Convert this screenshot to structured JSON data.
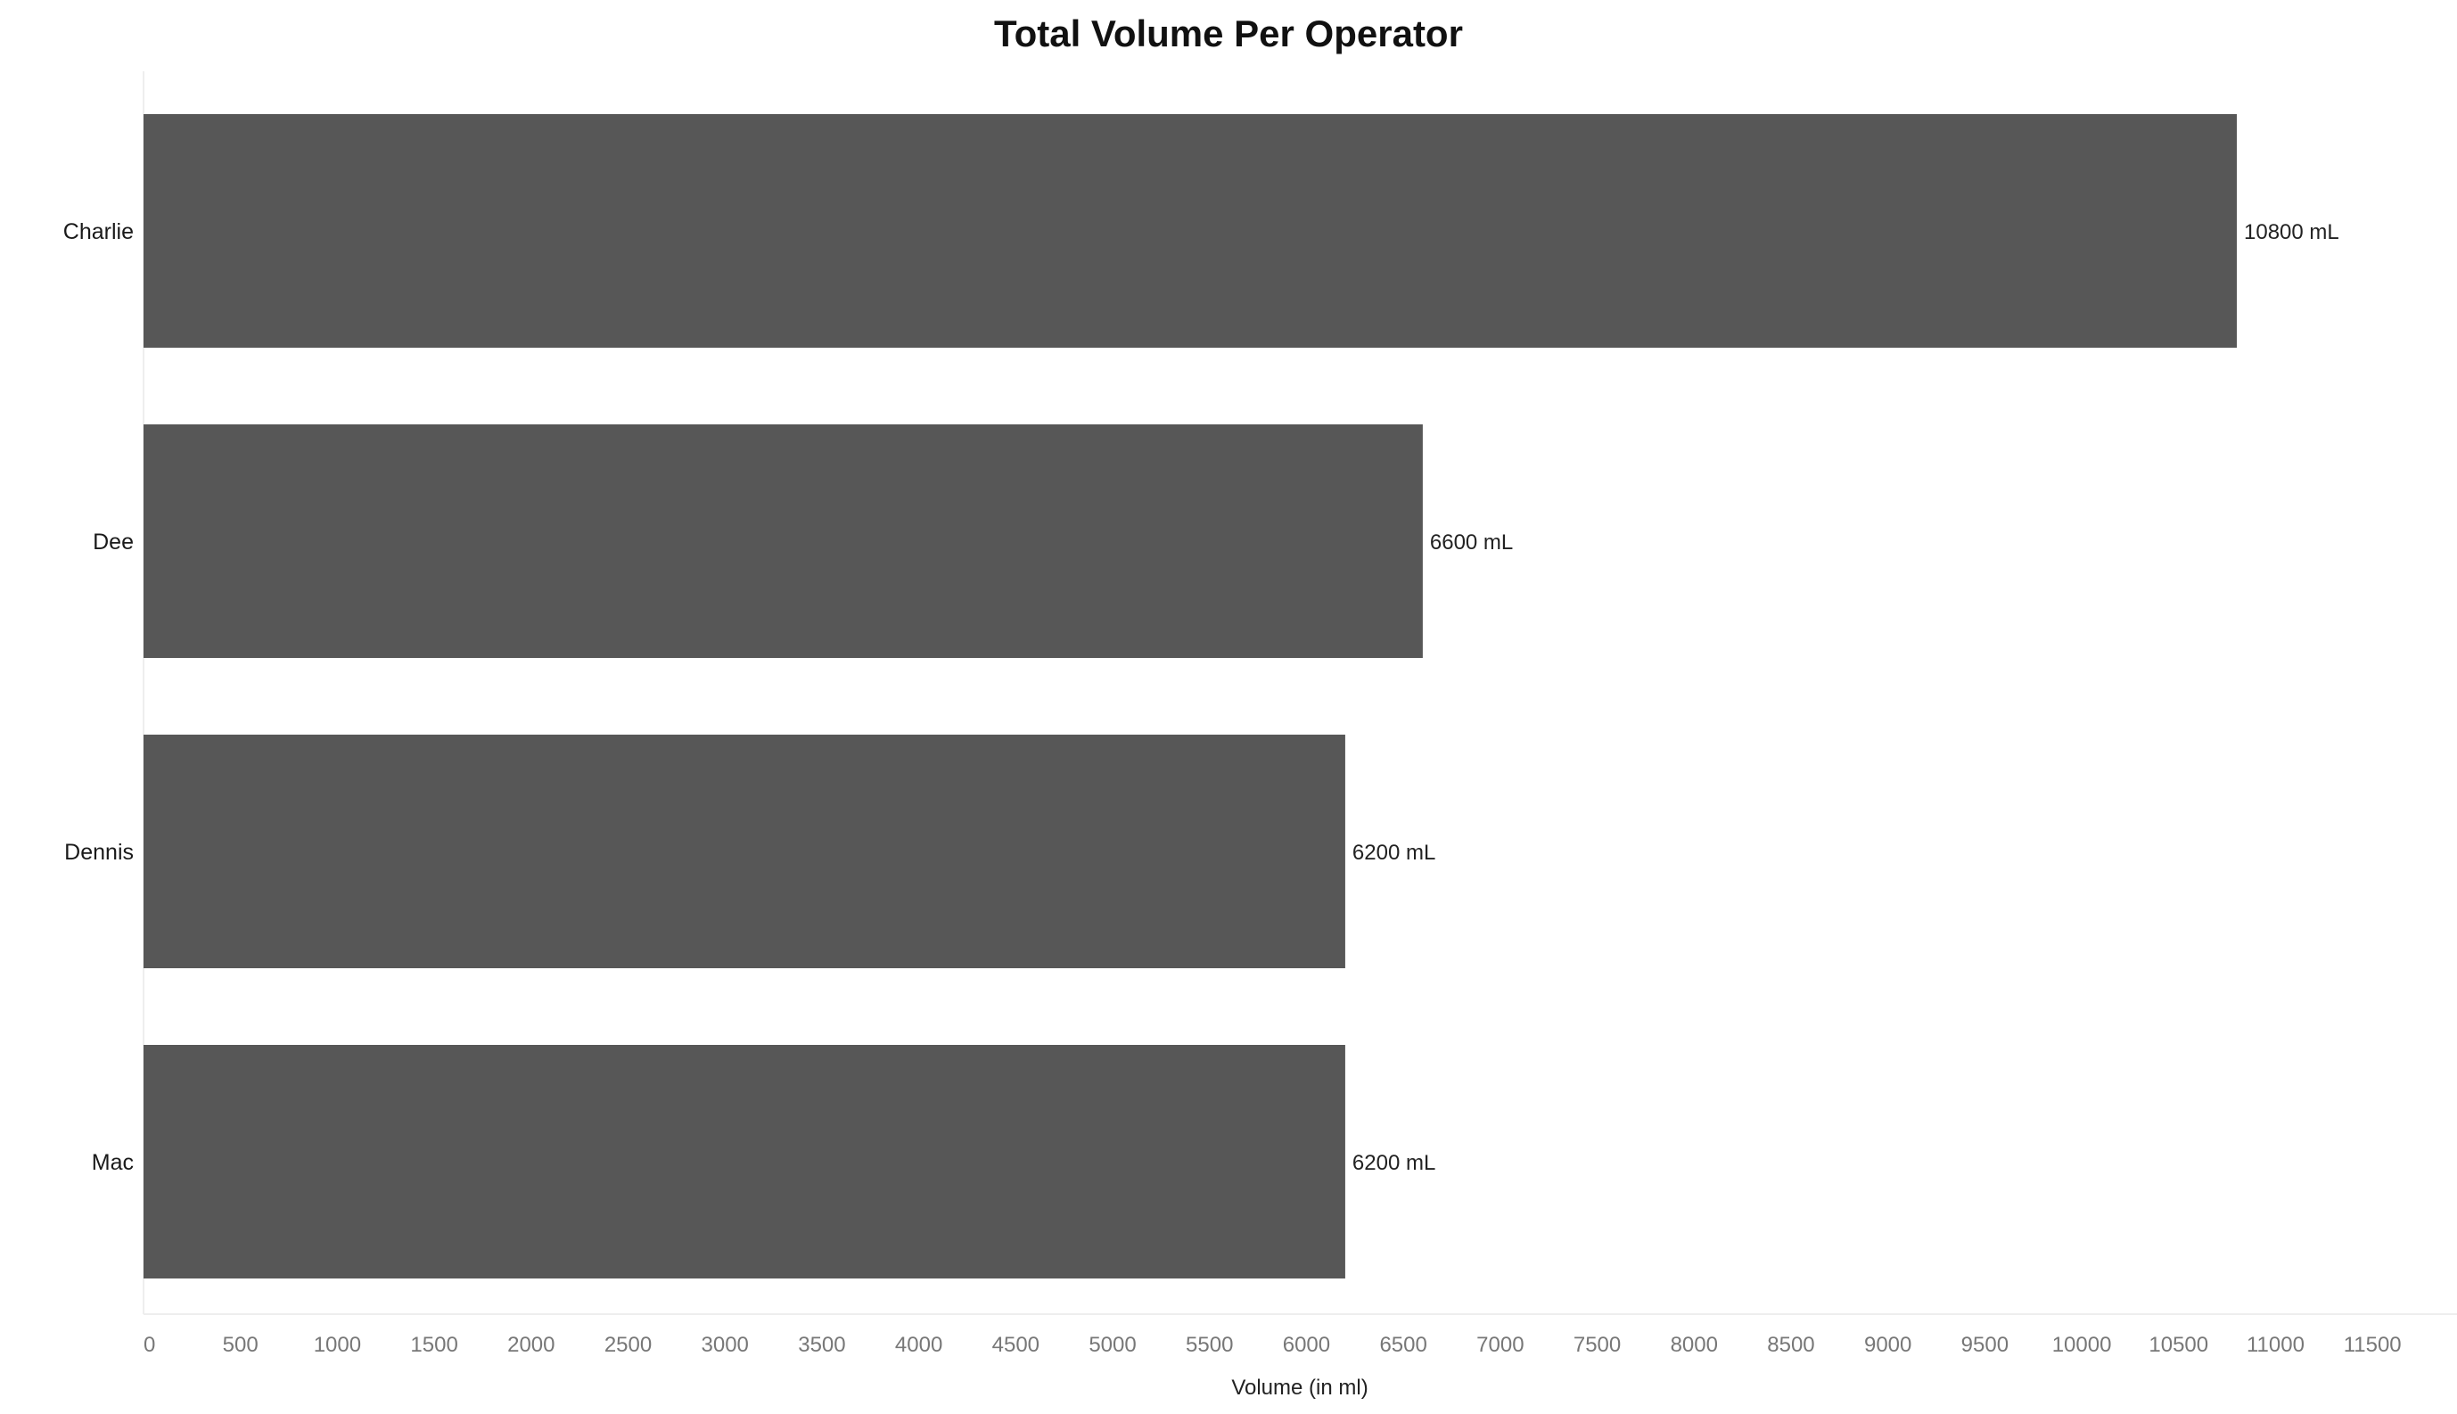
{
  "chart_data": {
    "type": "bar",
    "orientation": "horizontal",
    "title": "Total Volume Per Operator",
    "xlabel": "Volume (in ml)",
    "ylabel": "",
    "categories": [
      "Charlie",
      "Dee",
      "Dennis",
      "Mac"
    ],
    "values": [
      10800,
      6600,
      6200,
      6200
    ],
    "data_labels": [
      "10800 mL",
      "6600 mL",
      "6200 mL",
      "6200 mL"
    ],
    "xlim": [
      0,
      11500
    ],
    "x_ticks": [
      0,
      500,
      1000,
      1500,
      2000,
      2500,
      3000,
      3500,
      4000,
      4500,
      5000,
      5500,
      6000,
      6500,
      7000,
      7500,
      8000,
      8500,
      9000,
      9500,
      10000,
      10500,
      11000,
      11500
    ],
    "grid": false,
    "legend": "none",
    "bar_color": "#575757"
  }
}
